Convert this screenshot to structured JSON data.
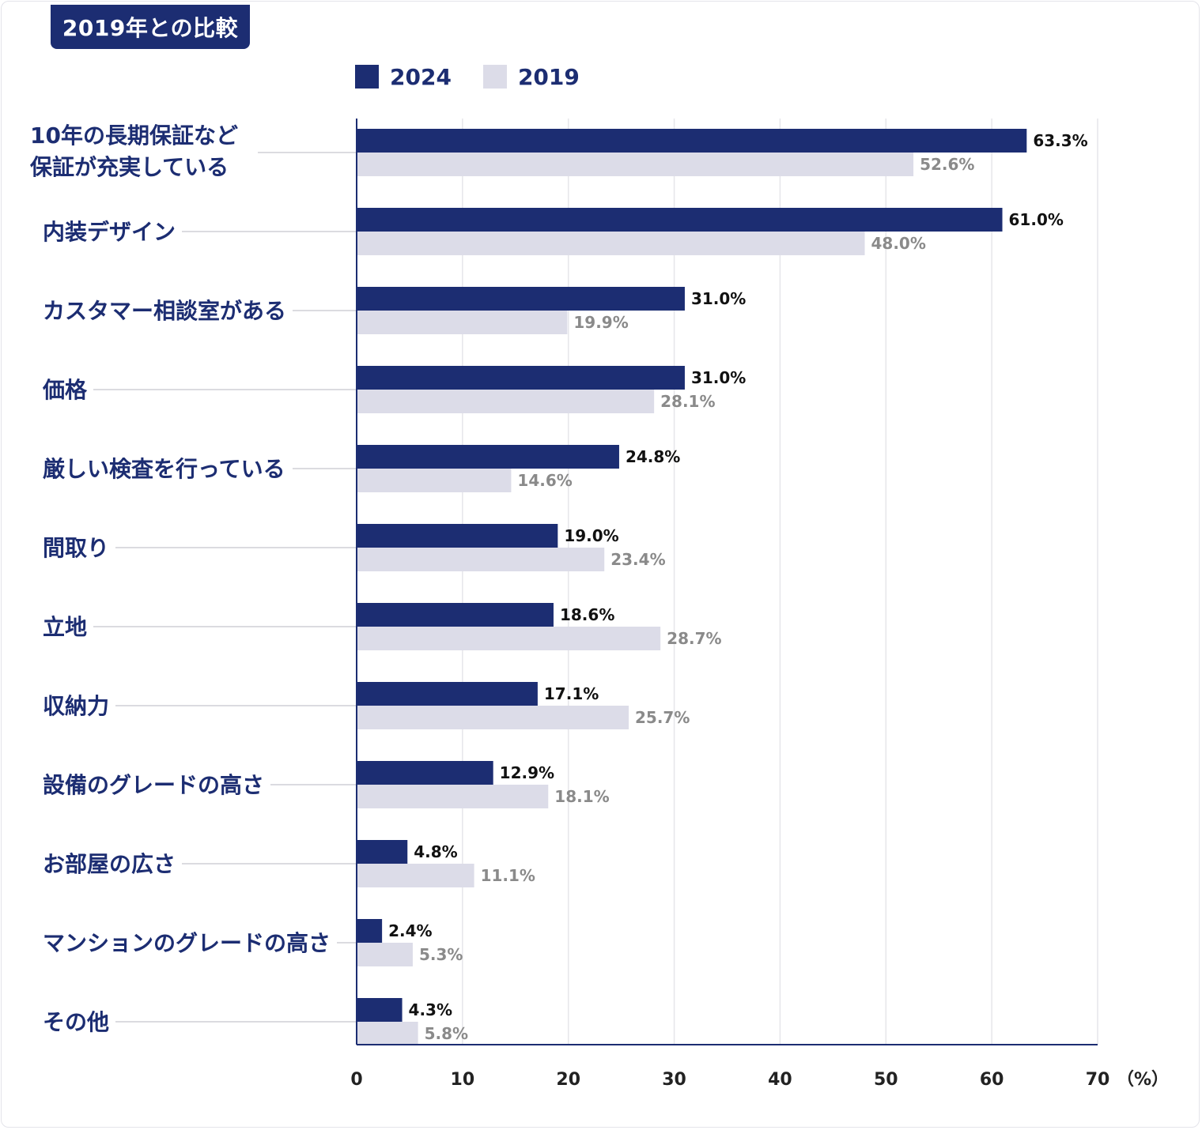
{
  "header": {
    "badge": "2019年との比較"
  },
  "chart_data": {
    "type": "bar",
    "orientation": "horizontal",
    "categories": [
      [
        "10年の長期保証など",
        "保証が充実している"
      ],
      [
        "内装デザイン"
      ],
      [
        "カスタマー相談室がある"
      ],
      [
        "価格"
      ],
      [
        "厳しい検査を行っている"
      ],
      [
        "間取り"
      ],
      [
        "立地"
      ],
      [
        "収納力"
      ],
      [
        "設備のグレードの高さ"
      ],
      [
        "お部屋の広さ"
      ],
      [
        "マンションのグレードの高さ"
      ],
      [
        "その他"
      ]
    ],
    "series": [
      {
        "name": "2024",
        "color": "#1c2d72",
        "label_color": "#111111",
        "values": [
          63.3,
          61.0,
          31.0,
          31.0,
          24.8,
          19.0,
          18.6,
          17.1,
          12.9,
          4.8,
          2.4,
          4.3
        ],
        "labels": [
          "63.3%",
          "61.0%",
          "31.0%",
          "31.0%",
          "24.8%",
          "19.0%",
          "18.6%",
          "17.1%",
          "12.9%",
          "4.8%",
          "2.4%",
          "4.3%"
        ]
      },
      {
        "name": "2019",
        "color": "#dcdce8",
        "label_color": "#8a8a8a",
        "values": [
          52.6,
          48.0,
          19.9,
          28.1,
          14.6,
          23.4,
          28.7,
          25.7,
          18.1,
          11.1,
          5.3,
          5.8
        ],
        "labels": [
          "52.6%",
          "48.0%",
          "19.9%",
          "28.1%",
          "14.6%",
          "23.4%",
          "28.7%",
          "25.7%",
          "18.1%",
          "11.1%",
          "5.3%",
          "5.8%"
        ]
      }
    ],
    "xlim": [
      0,
      70
    ],
    "xticks": [
      "0",
      "10",
      "20",
      "30",
      "40",
      "50",
      "60",
      "70"
    ],
    "xlabel": "（%）",
    "grid": true,
    "legend_position": "top"
  }
}
